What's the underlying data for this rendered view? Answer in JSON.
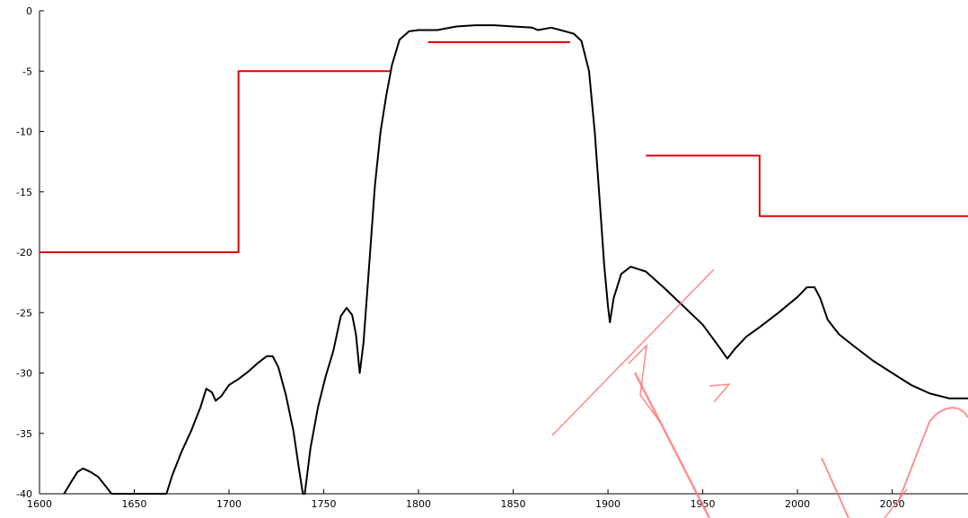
{
  "chart_data": {
    "type": "line",
    "title": "",
    "xlabel": "",
    "ylabel": "",
    "xlim": [
      1600,
      2090
    ],
    "ylim": [
      -40,
      0
    ],
    "x_ticks": [
      1600,
      1650,
      1700,
      1750,
      1800,
      1850,
      1900,
      1950,
      2000,
      2050
    ],
    "x_tick_labels": [
      "1600",
      "1650",
      "1700",
      "1750",
      "1800",
      "1850",
      "1900",
      "1950",
      "2000",
      "2050"
    ],
    "y_ticks": [
      0,
      -5,
      -10,
      -15,
      -20,
      -25,
      -30,
      -35,
      -40
    ],
    "y_tick_labels": [
      "0",
      "-5",
      "-10",
      "-15",
      "-20",
      "-25",
      "-30",
      "-35",
      "-40"
    ],
    "grid": false,
    "series": [
      {
        "color": "#000000",
        "points": [
          [
            1613,
            -40
          ],
          [
            1616,
            -39.2
          ],
          [
            1620,
            -38.2
          ],
          [
            1623,
            -37.9
          ],
          [
            1627,
            -38.2
          ],
          [
            1631,
            -38.6
          ],
          [
            1635,
            -39.4
          ],
          [
            1638,
            -40
          ],
          [
            1667,
            -40
          ],
          [
            1670,
            -38.5
          ],
          [
            1675,
            -36.5
          ],
          [
            1680,
            -34.8
          ],
          [
            1685,
            -32.8
          ],
          [
            1688,
            -31.3
          ],
          [
            1691,
            -31.6
          ],
          [
            1693,
            -32.3
          ],
          [
            1696,
            -31.9
          ],
          [
            1700,
            -31.0
          ],
          [
            1705,
            -30.5
          ],
          [
            1710,
            -29.9
          ],
          [
            1715,
            -29.2
          ],
          [
            1720,
            -28.6
          ],
          [
            1723,
            -28.6
          ],
          [
            1726,
            -29.5
          ],
          [
            1730,
            -31.8
          ],
          [
            1734,
            -34.8
          ],
          [
            1737,
            -38.0
          ],
          [
            1739,
            -40
          ],
          [
            1740,
            -40
          ],
          [
            1743,
            -36.2
          ],
          [
            1747,
            -32.8
          ],
          [
            1751,
            -30.3
          ],
          [
            1755,
            -28.2
          ],
          [
            1759,
            -25.3
          ],
          [
            1762,
            -24.6
          ],
          [
            1765,
            -25.2
          ],
          [
            1767,
            -26.8
          ],
          [
            1769,
            -30.0
          ],
          [
            1771,
            -27.5
          ],
          [
            1774,
            -21.0
          ],
          [
            1777,
            -14.5
          ],
          [
            1780,
            -10.0
          ],
          [
            1783,
            -7.0
          ],
          [
            1786,
            -4.5
          ],
          [
            1790,
            -2.4
          ],
          [
            1795,
            -1.7
          ],
          [
            1800,
            -1.6
          ],
          [
            1810,
            -1.6
          ],
          [
            1820,
            -1.3
          ],
          [
            1830,
            -1.2
          ],
          [
            1840,
            -1.2
          ],
          [
            1850,
            -1.3
          ],
          [
            1860,
            -1.4
          ],
          [
            1863,
            -1.6
          ],
          [
            1870,
            -1.4
          ],
          [
            1875,
            -1.6
          ],
          [
            1882,
            -1.9
          ],
          [
            1886,
            -2.5
          ],
          [
            1890,
            -5.0
          ],
          [
            1893,
            -10.0
          ],
          [
            1896,
            -16.5
          ],
          [
            1898,
            -21.0
          ],
          [
            1900,
            -24.5
          ],
          [
            1901,
            -25.8
          ],
          [
            1903,
            -23.8
          ],
          [
            1907,
            -21.8
          ],
          [
            1912,
            -21.2
          ],
          [
            1920,
            -21.6
          ],
          [
            1930,
            -23.0
          ],
          [
            1940,
            -24.5
          ],
          [
            1950,
            -26.0
          ],
          [
            1958,
            -27.7
          ],
          [
            1963,
            -28.8
          ],
          [
            1967,
            -28.0
          ],
          [
            1973,
            -27.0
          ],
          [
            1980,
            -26.2
          ],
          [
            1990,
            -25.0
          ],
          [
            2000,
            -23.7
          ],
          [
            2005,
            -22.9
          ],
          [
            2009,
            -22.9
          ],
          [
            2012,
            -23.8
          ],
          [
            2016,
            -25.6
          ],
          [
            2022,
            -26.8
          ],
          [
            2030,
            -27.8
          ],
          [
            2040,
            -29.0
          ],
          [
            2050,
            -30.0
          ],
          [
            2060,
            -31.0
          ],
          [
            2070,
            -31.7
          ],
          [
            2080,
            -32.1
          ],
          [
            2090,
            -32.1
          ]
        ]
      },
      {
        "color": "#e00000",
        "points": [
          [
            1600,
            -20
          ],
          [
            1705,
            -20
          ],
          [
            1705,
            -5
          ],
          [
            1785,
            -5
          ]
        ]
      },
      {
        "color": "#e00000",
        "points": [
          [
            1805,
            -2.6
          ],
          [
            1880,
            -2.6
          ]
        ]
      },
      {
        "color": "#e00000",
        "points": [
          [
            1920,
            -12
          ],
          [
            1980,
            -12
          ],
          [
            1980,
            -17
          ],
          [
            2090,
            -17
          ]
        ]
      }
    ]
  },
  "colors": {
    "mask_line": "#e00000",
    "response_line": "#000000",
    "watermark": "#ff6b6b"
  }
}
